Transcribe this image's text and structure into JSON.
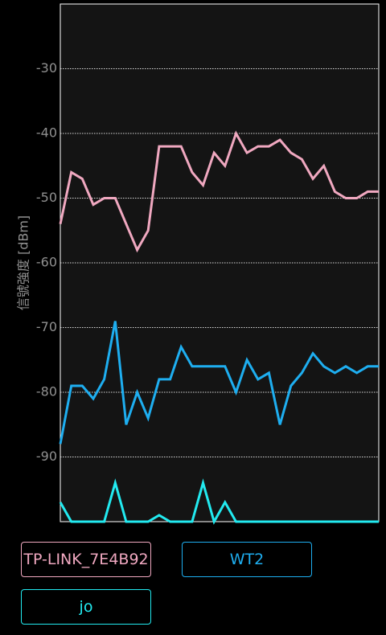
{
  "chart_data": {
    "type": "line",
    "ylabel": "信號強度 [dBm]",
    "ylim": [
      -100,
      -20
    ],
    "yticks": [
      -30,
      -40,
      -50,
      -60,
      -70,
      -80,
      -90
    ],
    "grid": true,
    "series": [
      {
        "name": "TP-LINK_7E4B92",
        "color": "#f0a8c0",
        "values": [
          -54,
          -46,
          -47,
          -51,
          -50,
          -50,
          -54,
          -58,
          -55,
          -42,
          -42,
          -42,
          -46,
          -48,
          -43,
          -45,
          -40,
          -43,
          -42,
          -42,
          -41,
          -43,
          -44,
          -47,
          -45,
          -49,
          -50,
          -50,
          -49,
          -49
        ]
      },
      {
        "name": "WT2",
        "color": "#1eaef0",
        "values": [
          -88,
          -79,
          -79,
          -81,
          -78,
          -69,
          -85,
          -80,
          -84,
          -78,
          -78,
          -73,
          -76,
          -76,
          -76,
          -76,
          -80,
          -75,
          -78,
          -77,
          -85,
          -79,
          -77,
          -74,
          -76,
          -77,
          -76,
          -77,
          -76,
          -76
        ]
      },
      {
        "name": "jo",
        "color": "#22eaf0",
        "values": [
          -97,
          -100,
          -100,
          -100,
          -100,
          -94,
          -100,
          -100,
          -100,
          -99,
          -100,
          -100,
          -100,
          -94,
          -100,
          -97,
          -100,
          -100,
          -100,
          -100,
          -100,
          -100,
          -100,
          -100,
          -100,
          -100,
          -100,
          -100,
          -100,
          -100
        ]
      }
    ]
  }
}
